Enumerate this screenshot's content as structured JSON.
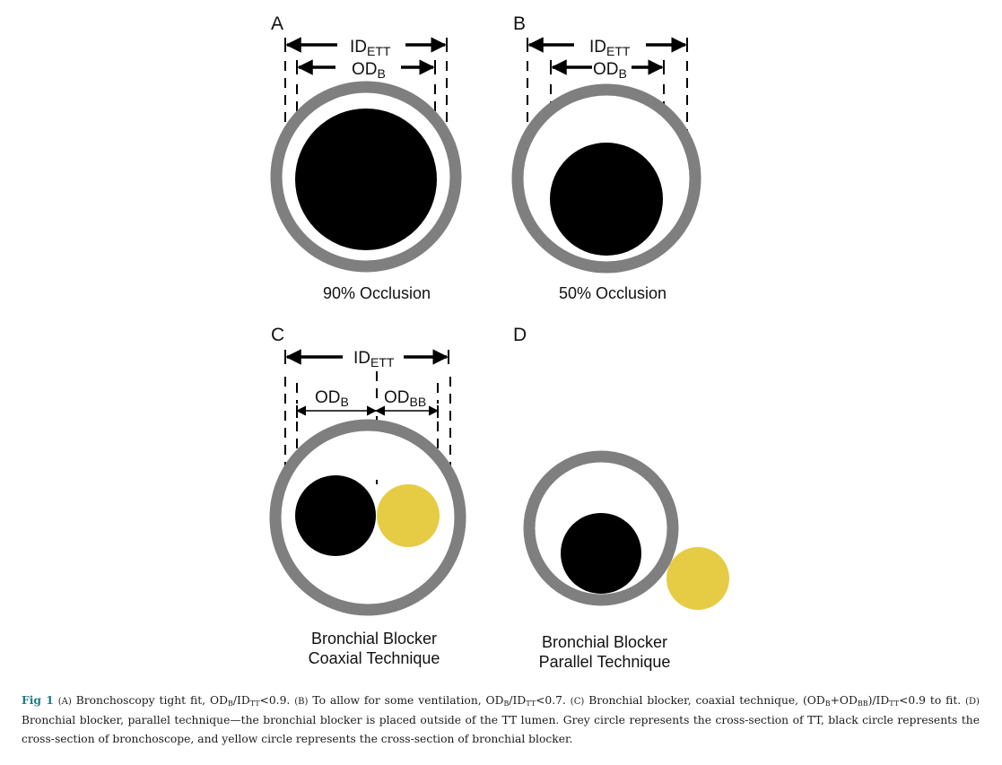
{
  "figure": {
    "panels": {
      "a": {
        "letter": "A",
        "label": "90% Occlusion"
      },
      "b": {
        "letter": "B",
        "label": "50% Occlusion"
      },
      "c": {
        "letter": "C",
        "label_line1": "Bronchial Blocker",
        "label_line2": "Coaxial Technique"
      },
      "d": {
        "letter": "D",
        "label_line1": "Bronchial Blocker",
        "label_line2": "Parallel Technique"
      }
    },
    "dimensions": {
      "id_ett": {
        "main": "ID",
        "sub": "ETT"
      },
      "od_b": {
        "main": "OD",
        "sub": "B"
      },
      "od_bb": {
        "main": "OD",
        "sub": "BB"
      }
    },
    "colors": {
      "tube": "#7f7f7f",
      "bronchoscope": "#000000",
      "blocker": "#e6cc45",
      "caption_label": "#1f7a85"
    }
  },
  "caption": {
    "fig_label": "Fig 1",
    "a_letter": "(A)",
    "a_text_1": "Bronchoscopy tight fit, OD",
    "a_sub_1": "B",
    "a_text_2": "/ID",
    "a_sub_2": "TT",
    "a_text_3": "<0.9.",
    "b_letter": "(B)",
    "b_text_1": "To allow for some ventilation, OD",
    "b_sub_1": "B",
    "b_text_2": "/ID",
    "b_sub_2": "TT",
    "b_text_3": "<0.7.",
    "c_letter": "(C)",
    "c_text_1": "Bronchial blocker, coaxial technique, (OD",
    "c_sub_1": "B",
    "c_text_2": "+OD",
    "c_sub_2": "BB",
    "c_text_3": ")/ID",
    "c_sub_3": "TT",
    "c_text_4": "<0.9 to fit.",
    "d_letter": "(D)",
    "d_text": "Bronchial blocker, parallel technique—the bronchial blocker is placed outside of the TT lumen. Grey circle represents the cross-section of TT, black circle represents the cross-section of bronchoscope, and yellow circle represents the cross-section of bronchial blocker."
  }
}
